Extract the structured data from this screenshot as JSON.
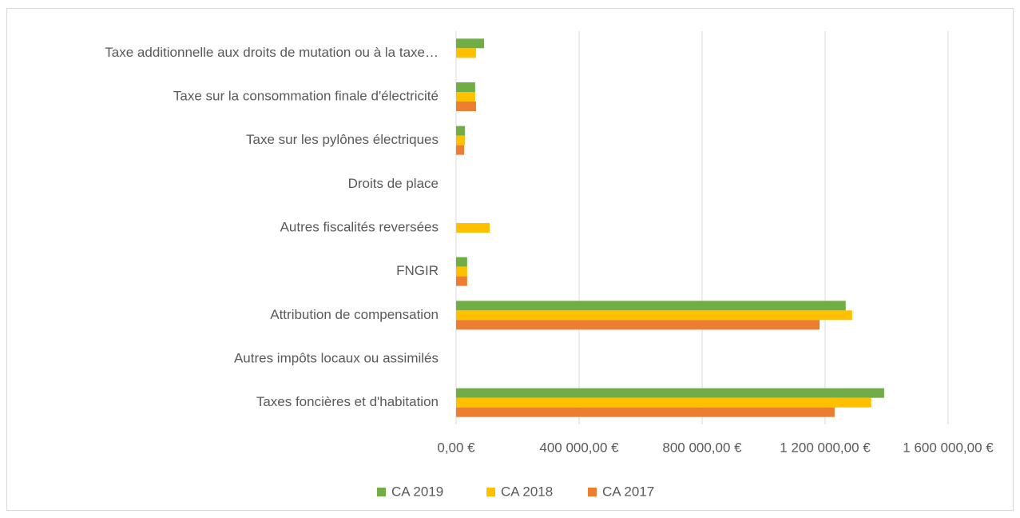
{
  "chart_data": {
    "type": "bar",
    "orientation": "horizontal",
    "categories": [
      "Taxe additionnelle aux droits de mutation ou à la taxe…",
      "Taxe sur la consommation finale d'électricité",
      "Taxe sur les pylônes électriques",
      "Droits de place",
      "Autres fiscalités reversées",
      "FNGIR",
      "Attribution de compensation",
      "Autres impôts locaux ou assimilés",
      "Taxes foncières et d'habitation"
    ],
    "series": [
      {
        "name": "CA 2019",
        "color": "#70ad47",
        "values": [
          91000,
          62000,
          29000,
          0,
          0,
          36000,
          1267000,
          0,
          1392000
        ]
      },
      {
        "name": "CA 2018",
        "color": "#ffc000",
        "values": [
          65000,
          62000,
          29000,
          0,
          109000,
          36000,
          1288000,
          0,
          1350000
        ]
      },
      {
        "name": "CA 2017",
        "color": "#ed7d31",
        "values": [
          0,
          65000,
          26000,
          0,
          0,
          36000,
          1182000,
          0,
          1231000
        ]
      }
    ],
    "xlim": [
      0,
      1600000
    ],
    "xticks": [
      {
        "value": 0,
        "label": "0,00 €"
      },
      {
        "value": 400000,
        "label": "400 000,00 €"
      },
      {
        "value": 800000,
        "label": "800 000,00 €"
      },
      {
        "value": 1200000,
        "label": "1 200 000,00 €"
      },
      {
        "value": 1600000,
        "label": "1 600 000,00 €"
      }
    ],
    "grid": true,
    "legend": "bottom"
  }
}
